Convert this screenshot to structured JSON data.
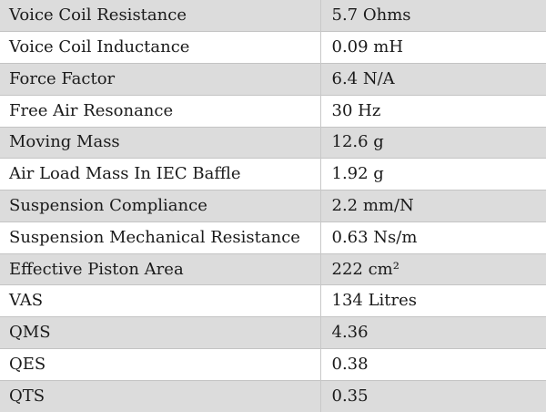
{
  "specs": [
    {
      "parameter": "Voice Coil Resistance",
      "value": "5.7 Ohms"
    },
    {
      "parameter": "Voice Coil Inductance",
      "value": "0.09 mH"
    },
    {
      "parameter": "Force Factor",
      "value": "6.4 N/A"
    },
    {
      "parameter": "Free Air Resonance",
      "value": "30 Hz"
    },
    {
      "parameter": "Moving Mass",
      "value": "12.6 g"
    },
    {
      "parameter": "Air Load Mass In IEC Baffle",
      "value": "1.92 g"
    },
    {
      "parameter": "Suspension Compliance",
      "value": "2.2 mm/N"
    },
    {
      "parameter": "Suspension Mechanical Resistance",
      "value": "0.63 Ns/m"
    },
    {
      "parameter": "Effective Piston Area",
      "value": "222 cm²"
    },
    {
      "parameter": "VAS",
      "value": "134 Litres"
    },
    {
      "parameter": "QMS",
      "value": "4.36"
    },
    {
      "parameter": "QES",
      "value": "0.38"
    },
    {
      "parameter": "QTS",
      "value": "0.35"
    }
  ]
}
